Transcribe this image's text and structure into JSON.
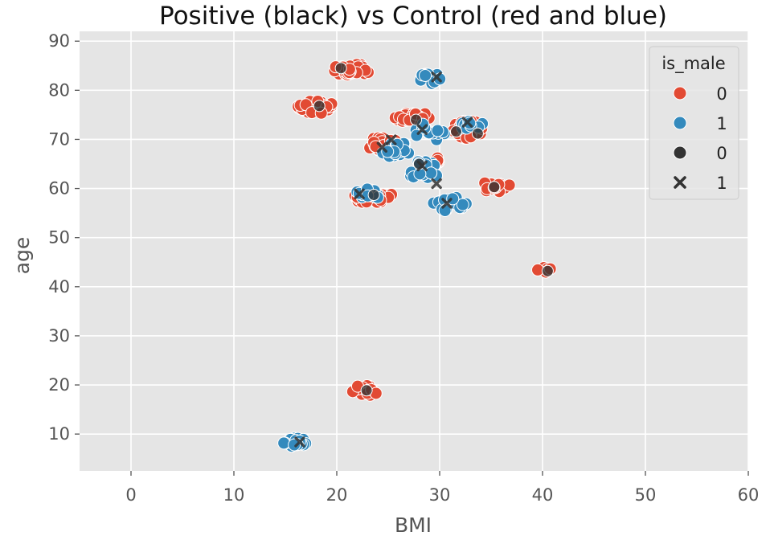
{
  "chart_data": {
    "type": "scatter",
    "title": "Positive (black) vs Control (red and blue)",
    "xlabel": "BMI",
    "ylabel": "age",
    "xlim": [
      -5,
      60
    ],
    "ylim": [
      2.5,
      92
    ],
    "xticks": [
      0,
      10,
      20,
      30,
      40,
      50,
      60
    ],
    "yticks": [
      10,
      20,
      30,
      40,
      50,
      60,
      70,
      80,
      90
    ],
    "grid": true,
    "legend": {
      "title": "is_male",
      "placement": "top-right",
      "entries": [
        {
          "label": "0",
          "marker": "circle",
          "color": "#e24a33"
        },
        {
          "label": "1",
          "marker": "circle",
          "color": "#348abd"
        },
        {
          "label": "0",
          "marker": "circle",
          "color": "#333333"
        },
        {
          "label": "1",
          "marker": "x",
          "color": "#333333"
        }
      ]
    },
    "colors": {
      "female": "#e24a33",
      "male": "#348abd",
      "positive": "#333333",
      "background": "#e5e5e5"
    },
    "control_clusters": [
      {
        "name": "0",
        "color": "#e24a33",
        "center": [
          21.5,
          84.2
        ],
        "spread": [
          1.9,
          1.2
        ],
        "n": 30
      },
      {
        "name": "0",
        "color": "#e24a33",
        "center": [
          18.0,
          76.6
        ],
        "spread": [
          1.8,
          1.3
        ],
        "n": 30
      },
      {
        "name": "0",
        "color": "#e24a33",
        "center": [
          27.4,
          74.5
        ],
        "spread": [
          1.9,
          1.0
        ],
        "n": 26
      },
      {
        "name": "0",
        "color": "#e24a33",
        "center": [
          24.5,
          69.0
        ],
        "spread": [
          1.5,
          1.5
        ],
        "n": 18
      },
      {
        "name": "0",
        "color": "#e24a33",
        "center": [
          32.8,
          72.0
        ],
        "spread": [
          1.6,
          1.8
        ],
        "n": 24
      },
      {
        "name": "0",
        "color": "#e24a33",
        "center": [
          23.4,
          58.4
        ],
        "spread": [
          2.0,
          1.4
        ],
        "n": 30
      },
      {
        "name": "0",
        "color": "#e24a33",
        "center": [
          29.0,
          65.5
        ],
        "spread": [
          1.0,
          1.2
        ],
        "n": 10
      },
      {
        "name": "0",
        "color": "#e24a33",
        "center": [
          35.5,
          60.5
        ],
        "spread": [
          1.4,
          1.3
        ],
        "n": 14
      },
      {
        "name": "0",
        "color": "#e24a33",
        "center": [
          40.2,
          43.3
        ],
        "spread": [
          0.7,
          1.2
        ],
        "n": 6
      },
      {
        "name": "0",
        "color": "#e24a33",
        "center": [
          22.8,
          18.8
        ],
        "spread": [
          1.3,
          1.2
        ],
        "n": 16
      },
      {
        "name": "1",
        "color": "#348abd",
        "center": [
          29.2,
          82.5
        ],
        "spread": [
          1.2,
          1.2
        ],
        "n": 14
      },
      {
        "name": "1",
        "color": "#348abd",
        "center": [
          25.6,
          68.0
        ],
        "spread": [
          1.6,
          1.6
        ],
        "n": 20
      },
      {
        "name": "1",
        "color": "#348abd",
        "center": [
          29.2,
          71.5
        ],
        "spread": [
          1.8,
          1.8
        ],
        "n": 16
      },
      {
        "name": "1",
        "color": "#348abd",
        "center": [
          33.2,
          72.8
        ],
        "spread": [
          1.2,
          1.0
        ],
        "n": 10
      },
      {
        "name": "1",
        "color": "#348abd",
        "center": [
          28.3,
          63.8
        ],
        "spread": [
          1.8,
          1.8
        ],
        "n": 20
      },
      {
        "name": "1",
        "color": "#348abd",
        "center": [
          31.0,
          57.0
        ],
        "spread": [
          1.6,
          1.6
        ],
        "n": 22
      },
      {
        "name": "1",
        "color": "#348abd",
        "center": [
          23.0,
          58.8
        ],
        "spread": [
          1.2,
          1.2
        ],
        "n": 10
      },
      {
        "name": "1",
        "color": "#348abd",
        "center": [
          16.0,
          8.4
        ],
        "spread": [
          1.2,
          1.0
        ],
        "n": 22
      }
    ],
    "positive_points": [
      {
        "x": 20.4,
        "y": 84.5,
        "is_male": 0
      },
      {
        "x": 29.7,
        "y": 82.7,
        "is_male": 1
      },
      {
        "x": 18.3,
        "y": 76.8,
        "is_male": 0
      },
      {
        "x": 27.7,
        "y": 74.0,
        "is_male": 0
      },
      {
        "x": 32.7,
        "y": 73.5,
        "is_male": 1
      },
      {
        "x": 28.3,
        "y": 72.0,
        "is_male": 1
      },
      {
        "x": 31.6,
        "y": 71.6,
        "is_male": 0
      },
      {
        "x": 33.7,
        "y": 71.2,
        "is_male": 0
      },
      {
        "x": 25.3,
        "y": 69.9,
        "is_male": 1
      },
      {
        "x": 24.4,
        "y": 68.4,
        "is_male": 1
      },
      {
        "x": 28.0,
        "y": 65.0,
        "is_male": 0
      },
      {
        "x": 28.3,
        "y": 64.6,
        "is_male": 1
      },
      {
        "x": 29.7,
        "y": 61.0,
        "is_male": 1
      },
      {
        "x": 35.3,
        "y": 60.3,
        "is_male": 0
      },
      {
        "x": 22.2,
        "y": 58.9,
        "is_male": 1
      },
      {
        "x": 23.6,
        "y": 58.7,
        "is_male": 0
      },
      {
        "x": 30.7,
        "y": 57.0,
        "is_male": 1
      },
      {
        "x": 40.5,
        "y": 43.2,
        "is_male": 0
      },
      {
        "x": 22.9,
        "y": 18.9,
        "is_male": 0
      },
      {
        "x": 16.4,
        "y": 8.4,
        "is_male": 1
      }
    ]
  }
}
